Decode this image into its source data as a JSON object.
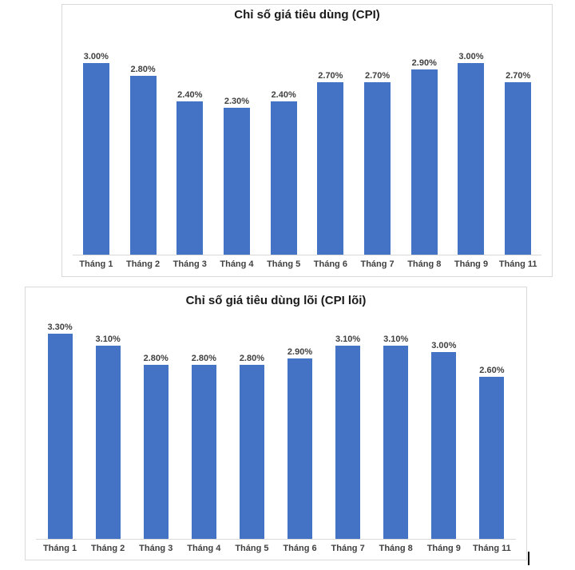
{
  "page": {
    "background": "#ffffff"
  },
  "chart_data": [
    {
      "type": "bar",
      "title": "Chỉ số giá tiêu dùng (CPI)",
      "categories": [
        "Tháng 1",
        "Tháng 2",
        "Tháng 3",
        "Tháng 4",
        "Tháng 5",
        "Tháng 6",
        "Tháng 7",
        "Tháng 8",
        "Tháng 9",
        "Tháng 11"
      ],
      "values": [
        3.0,
        2.8,
        2.4,
        2.3,
        2.4,
        2.7,
        2.7,
        2.9,
        3.0,
        2.7
      ],
      "value_labels": [
        "3.00%",
        "2.80%",
        "2.40%",
        "2.30%",
        "2.40%",
        "2.70%",
        "2.70%",
        "2.90%",
        "3.00%",
        "2.70%"
      ],
      "unit": "%",
      "ylim": [
        0,
        3.5
      ],
      "grid": false,
      "legend": "none",
      "xlabel": "",
      "ylabel": "",
      "bar_color": "#4472C4",
      "axis_color": "#d9d9d9",
      "label_color": "#404040"
    },
    {
      "type": "bar",
      "title": "Chỉ số giá tiêu dùng lõi (CPI lõi)",
      "categories": [
        "Tháng 1",
        "Tháng 2",
        "Tháng 3",
        "Tháng 4",
        "Tháng 5",
        "Tháng 6",
        "Tháng 7",
        "Tháng 8",
        "Tháng 9",
        "Tháng 11"
      ],
      "values": [
        3.3,
        3.1,
        2.8,
        2.8,
        2.8,
        2.9,
        3.1,
        3.1,
        3.0,
        2.6
      ],
      "value_labels": [
        "3.30%",
        "3.10%",
        "2.80%",
        "2.80%",
        "2.80%",
        "2.90%",
        "3.10%",
        "3.10%",
        "3.00%",
        "2.60%"
      ],
      "unit": "%",
      "ylim": [
        0,
        3.7
      ],
      "grid": false,
      "legend": "none",
      "xlabel": "",
      "ylabel": "",
      "bar_color": "#4472C4",
      "axis_color": "#d9d9d9",
      "label_color": "#404040"
    }
  ],
  "cursor": {
    "glyph": "text-caret"
  }
}
